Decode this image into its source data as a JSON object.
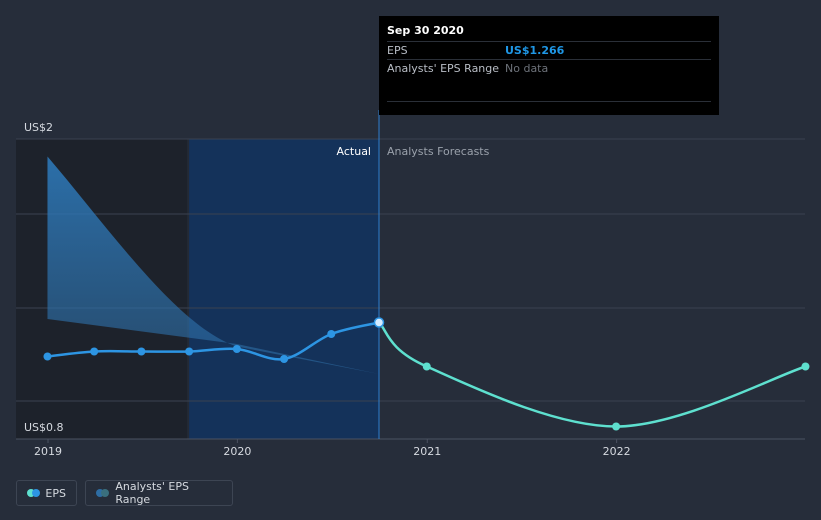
{
  "chart_data": {
    "type": "line",
    "y_axis": {
      "top_label": "US$2",
      "bottom_label": "US$0.8",
      "ylim": [
        0.8,
        2.0
      ]
    },
    "x_axis": {
      "ticks": [
        "2019",
        "2020",
        "2021",
        "2022"
      ]
    },
    "regions": {
      "actual_label": "Actual",
      "forecast_label": "Analysts Forecasts"
    },
    "series": [
      {
        "name": "EPS",
        "color": "#2d95e3",
        "points": [
          {
            "x": "2018-12-31",
            "y": 1.13
          },
          {
            "x": "2019-03-31",
            "y": 1.15
          },
          {
            "x": "2019-06-30",
            "y": 1.15
          },
          {
            "x": "2019-09-30",
            "y": 1.15
          },
          {
            "x": "2019-12-31",
            "y": 1.16
          },
          {
            "x": "2020-03-31",
            "y": 1.12
          },
          {
            "x": "2020-06-30",
            "y": 1.22
          },
          {
            "x": "2020-09-30",
            "y": 1.266
          }
        ]
      },
      {
        "name": "EPS forecast",
        "color": "#5ee0cf",
        "points": [
          {
            "x": "2020-09-30",
            "y": 1.266
          },
          {
            "x": "2020-12-31",
            "y": 1.09
          },
          {
            "x": "2021-12-31",
            "y": 0.85
          },
          {
            "x": "2022-12-31",
            "y": 1.09
          }
        ]
      },
      {
        "name": "Analysts' EPS Range",
        "color": "#2e6da4",
        "upper": [
          {
            "x": "2018-12-31",
            "y": 1.93
          },
          {
            "x": "2019-06-30",
            "y": 1.5
          },
          {
            "x": "2019-12-31",
            "y": 1.17
          },
          {
            "x": "2020-09-30",
            "y": 1.06
          }
        ],
        "lower": [
          {
            "x": "2018-12-31",
            "y": 1.28
          },
          {
            "x": "2019-12-31",
            "y": 1.18
          },
          {
            "x": "2020-09-30",
            "y": 1.06
          }
        ]
      }
    ],
    "tooltip": {
      "date": "Sep 30 2020",
      "rows": [
        {
          "label": "EPS",
          "value": "US$1.266"
        },
        {
          "label": "Analysts' EPS Range",
          "value": "No data"
        }
      ]
    },
    "legend": [
      {
        "label": "EPS",
        "colors": [
          "#2d95e3",
          "#5ee0cf"
        ]
      },
      {
        "label": "Analysts' EPS Range",
        "colors": [
          "#2e6da4",
          "#5ee0cf"
        ]
      }
    ],
    "grid": true,
    "legend_position": "bottom-left"
  }
}
